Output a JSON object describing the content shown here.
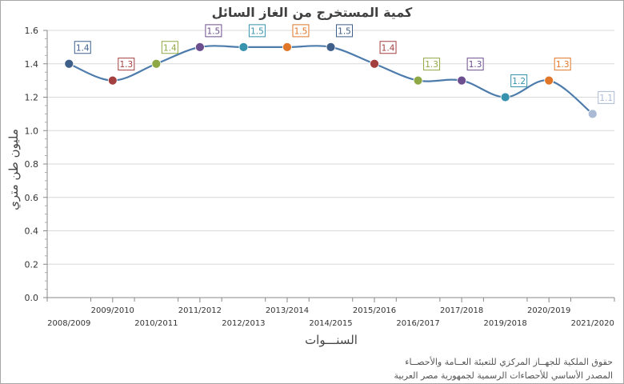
{
  "chart_data": {
    "type": "line",
    "title": "كمية المستخرج من الغاز السائل",
    "xlabel": "السنـــوات",
    "ylabel": "مليون طن متري",
    "categories": [
      "2008/2009",
      "2009/2010",
      "2010/2011",
      "2011/2012",
      "2012/2013",
      "2013/2014",
      "2014/2015",
      "2015/2016",
      "2016/2017",
      "2017/2018",
      "2019/2018",
      "2020/2019",
      "2021/2020"
    ],
    "values": [
      1.4,
      1.3,
      1.4,
      1.5,
      1.5,
      1.5,
      1.5,
      1.4,
      1.3,
      1.3,
      1.2,
      1.3,
      1.1
    ],
    "data_labels": [
      "1.4",
      "1.3",
      "1.4",
      "1.5",
      "1.5",
      "1.5",
      "1.5",
      "1.4",
      "1.3",
      "1.3",
      "1.2",
      "1.3",
      "1.1"
    ],
    "ylim": [
      0,
      1.6
    ],
    "yticks": [
      "0.0",
      "0.2",
      "0.4",
      "0.6",
      "0.8",
      "1.0",
      "1.2",
      "1.4",
      "1.6"
    ],
    "grid": true,
    "legend": "none",
    "line_color": "#4d7bab",
    "point_colors": [
      "#3e5f8a",
      "#a43f3f",
      "#8ea845",
      "#6c4f8e",
      "#3792ad",
      "#e07628",
      "#3e5f8a",
      "#a43f3f",
      "#8ea845",
      "#6c4f8e",
      "#3792ad",
      "#e07628",
      "#aab9d4"
    ]
  },
  "source": {
    "line1": "حقوق الملكية للجهــاز المركزي للتعبئة العــامة والأحصــاء",
    "line2": "المصدر الأساسي للأحصاءات الرسمية لجمهورية مصر العربية"
  }
}
